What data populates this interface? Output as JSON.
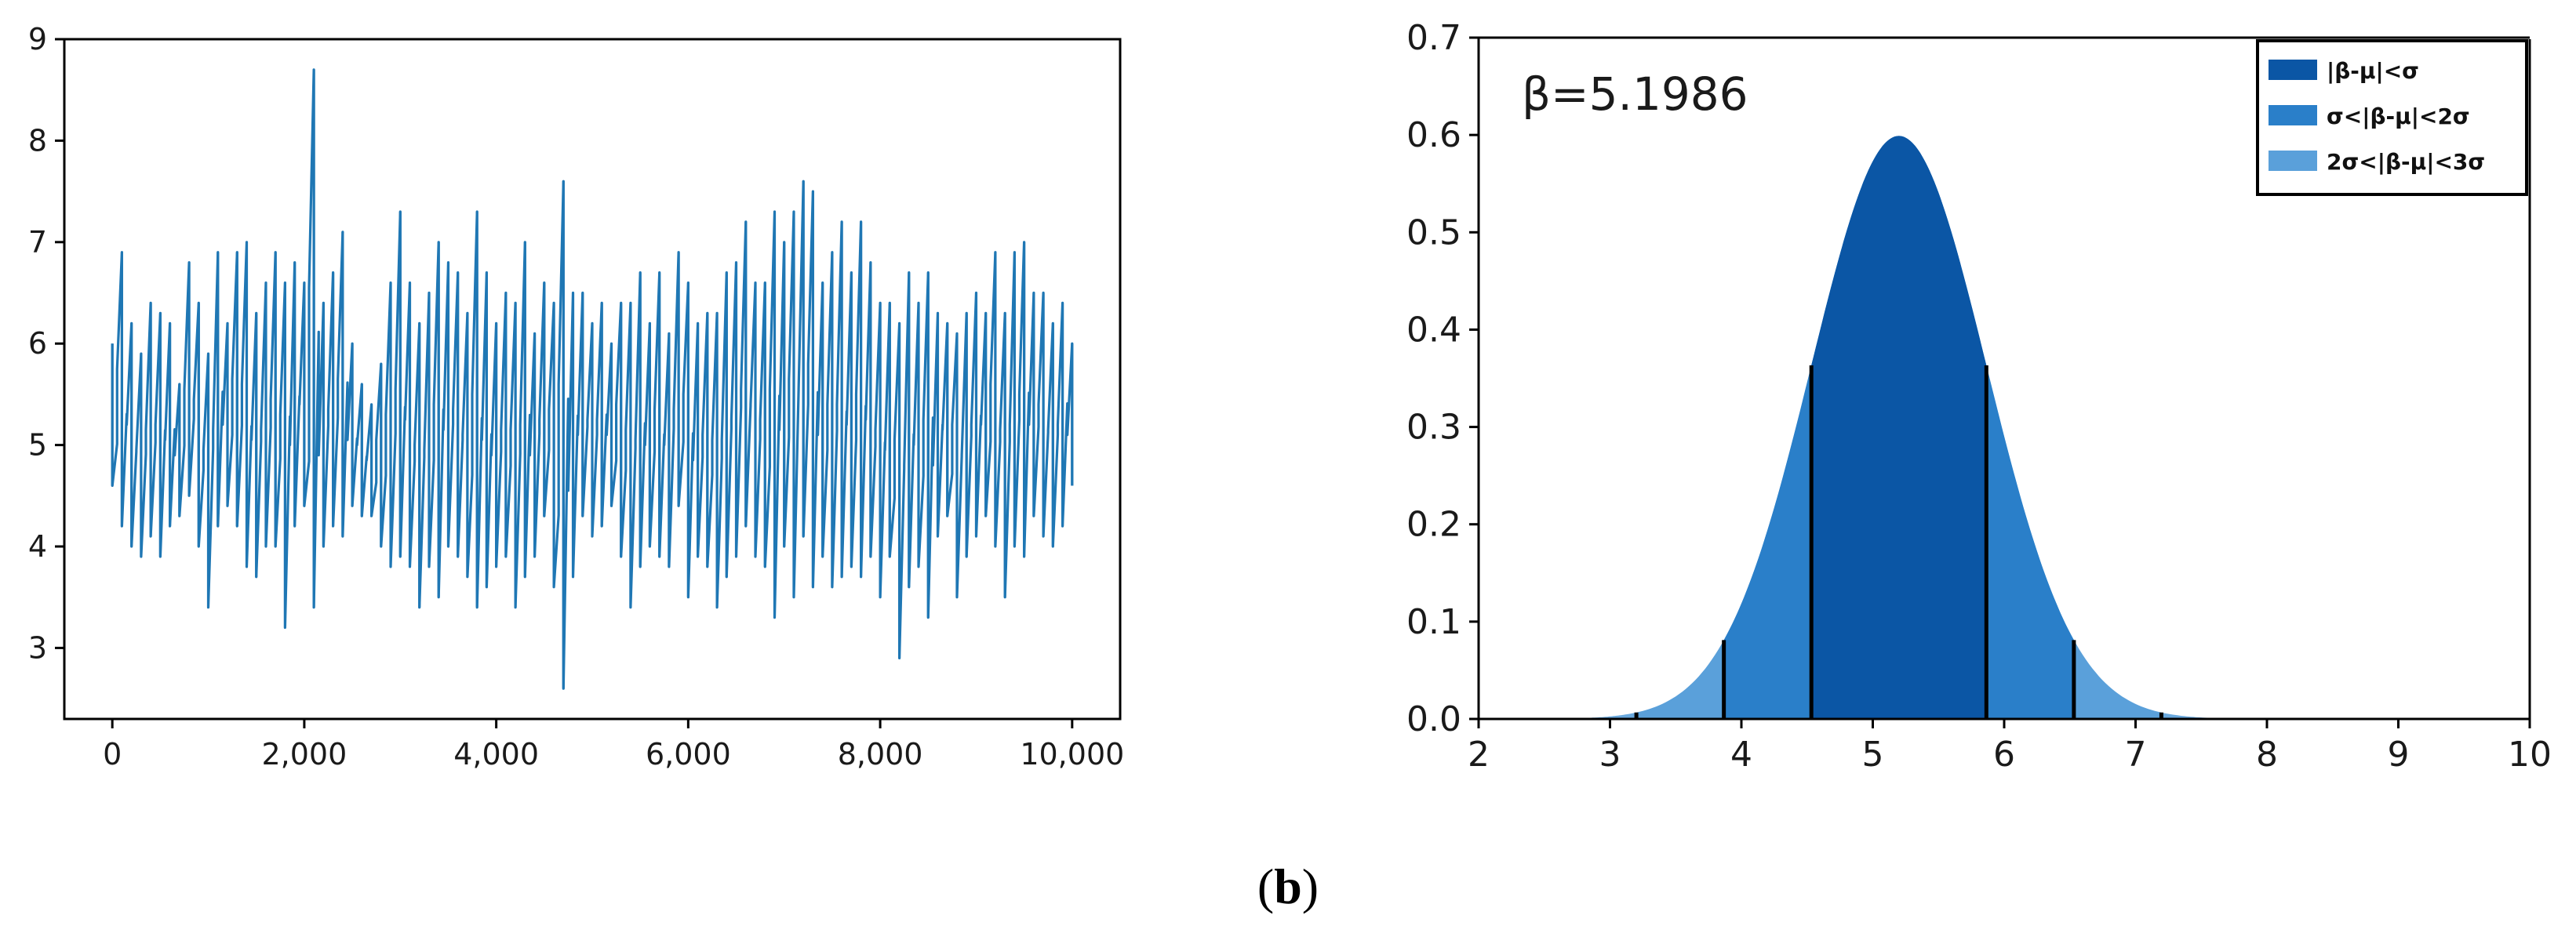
{
  "caption": {
    "open": "(",
    "letter": "b",
    "close": ")"
  },
  "colors": {
    "trace": "#1f77b4",
    "band1": "#0b56a5",
    "band2": "#2a7fc9",
    "band3": "#5aa0da",
    "axis": "#000000",
    "divider": "#000000"
  },
  "chart_data": [
    {
      "type": "line",
      "title": "",
      "xlabel": "",
      "ylabel": "",
      "xlim": [
        -500,
        10500
      ],
      "ylim": [
        2.3,
        9
      ],
      "x_ticks": [
        0,
        2000,
        4000,
        6000,
        8000,
        10000
      ],
      "x_tick_labels": [
        "0",
        "2,000",
        "4,000",
        "6,000",
        "8,000",
        "10,000"
      ],
      "y_ticks": [
        3,
        4,
        5,
        6,
        7,
        8,
        9
      ],
      "y_tick_labels": [
        "3",
        "4",
        "5",
        "6",
        "7",
        "8",
        "9"
      ],
      "grid": false,
      "series": [
        {
          "x": [
            0,
            100,
            200,
            300,
            400,
            500,
            600,
            700,
            800,
            900,
            1000,
            1100,
            1200,
            1300,
            1400,
            1500,
            1600,
            1700,
            1800,
            1900,
            2000,
            2100,
            2200,
            2300,
            2400,
            2500,
            2600,
            2700,
            2800,
            2900,
            3000,
            3100,
            3200,
            3300,
            3400,
            3500,
            3600,
            3700,
            3800,
            3900,
            4000,
            4100,
            4200,
            4300,
            4400,
            4500,
            4600,
            4700,
            4800,
            4900,
            5000,
            5100,
            5200,
            5300,
            5400,
            5500,
            5600,
            5700,
            5800,
            5900,
            6000,
            6100,
            6200,
            6300,
            6400,
            6500,
            6600,
            6700,
            6800,
            6900,
            7000,
            7100,
            7200,
            7300,
            7400,
            7500,
            7600,
            7700,
            7800,
            7900,
            8000,
            8100,
            8200,
            8300,
            8400,
            8500,
            8600,
            8700,
            8800,
            8900,
            9000,
            9100,
            9200,
            9300,
            9400,
            9500,
            9600,
            9700,
            9800,
            9900,
            10000
          ],
          "high": [
            6.0,
            6.9,
            6.2,
            5.9,
            6.4,
            6.3,
            6.2,
            5.6,
            6.8,
            6.4,
            5.9,
            6.9,
            6.2,
            6.9,
            7.0,
            6.3,
            6.6,
            6.9,
            6.6,
            6.8,
            6.6,
            8.7,
            6.4,
            6.7,
            7.1,
            6.0,
            5.6,
            5.4,
            5.8,
            6.6,
            7.3,
            6.6,
            6.2,
            6.5,
            7.0,
            6.8,
            6.7,
            6.3,
            7.3,
            6.7,
            6.2,
            6.5,
            6.4,
            7.0,
            6.1,
            6.6,
            6.4,
            7.6,
            6.5,
            6.5,
            6.2,
            6.4,
            6.0,
            6.4,
            6.4,
            6.7,
            6.2,
            6.7,
            6.1,
            6.9,
            6.6,
            6.2,
            6.3,
            6.3,
            6.7,
            6.8,
            7.2,
            6.6,
            6.6,
            7.3,
            7.0,
            7.3,
            7.6,
            7.5,
            6.6,
            6.9,
            7.2,
            6.7,
            7.2,
            6.8,
            6.4,
            6.4,
            6.2,
            6.7,
            6.4,
            6.7,
            6.3,
            6.2,
            6.1,
            6.3,
            6.5,
            6.3,
            6.9,
            6.3,
            6.9,
            7.0,
            6.5,
            6.5,
            6.2,
            6.4,
            6.0
          ],
          "low": [
            4.6,
            4.2,
            4.0,
            3.9,
            4.1,
            3.9,
            4.2,
            4.3,
            4.5,
            4.0,
            3.4,
            4.2,
            4.4,
            4.2,
            3.8,
            3.7,
            4.0,
            4.0,
            3.2,
            4.2,
            4.4,
            3.4,
            4.0,
            4.2,
            4.1,
            4.4,
            4.3,
            4.3,
            4.0,
            3.8,
            3.9,
            3.8,
            3.4,
            3.8,
            3.5,
            4.0,
            3.9,
            3.7,
            3.4,
            3.6,
            3.8,
            3.9,
            3.4,
            3.7,
            3.9,
            4.3,
            3.6,
            2.6,
            3.7,
            4.3,
            4.1,
            4.2,
            4.4,
            3.9,
            3.4,
            3.8,
            4.0,
            3.9,
            3.8,
            4.4,
            3.5,
            3.9,
            3.8,
            3.4,
            3.7,
            3.9,
            4.2,
            3.9,
            3.8,
            3.3,
            4.0,
            3.5,
            4.1,
            3.6,
            3.9,
            3.6,
            3.7,
            3.8,
            3.7,
            3.9,
            3.5,
            3.9,
            2.9,
            3.6,
            3.8,
            3.3,
            4.1,
            4.3,
            3.5,
            3.9,
            4.1,
            4.3,
            4.0,
            3.5,
            4.0,
            3.9,
            4.3,
            4.1,
            4.0,
            4.2,
            4.6
          ]
        }
      ]
    },
    {
      "type": "area",
      "title": "",
      "xlabel": "",
      "ylabel": "",
      "xlim": [
        2,
        10
      ],
      "ylim": [
        0,
        0.7
      ],
      "x_ticks": [
        2,
        3,
        4,
        5,
        6,
        7,
        8,
        9,
        10
      ],
      "x_tick_labels": [
        "2",
        "3",
        "4",
        "5",
        "6",
        "7",
        "8",
        "9",
        "10"
      ],
      "y_ticks": [
        0,
        0.1,
        0.2,
        0.3,
        0.4,
        0.5,
        0.6,
        0.7
      ],
      "y_tick_labels": [
        "0.0",
        "0.1",
        "0.2",
        "0.3",
        "0.4",
        "0.5",
        "0.6",
        "0.7"
      ],
      "grid": false,
      "annotation": "β=5.1986",
      "distribution": {
        "mean": 5.1986,
        "sigma": 0.666
      },
      "legend_position": "top-right",
      "series": [
        {
          "name": "|β-μ|<σ",
          "range": [
            4.5326,
            5.8646
          ]
        },
        {
          "name": "σ<|β-μ|<2σ",
          "range": [
            3.8666,
            6.5306
          ]
        },
        {
          "name": "2σ<|β-μ|<3σ",
          "range": [
            3.2006,
            7.1966
          ]
        }
      ]
    }
  ]
}
